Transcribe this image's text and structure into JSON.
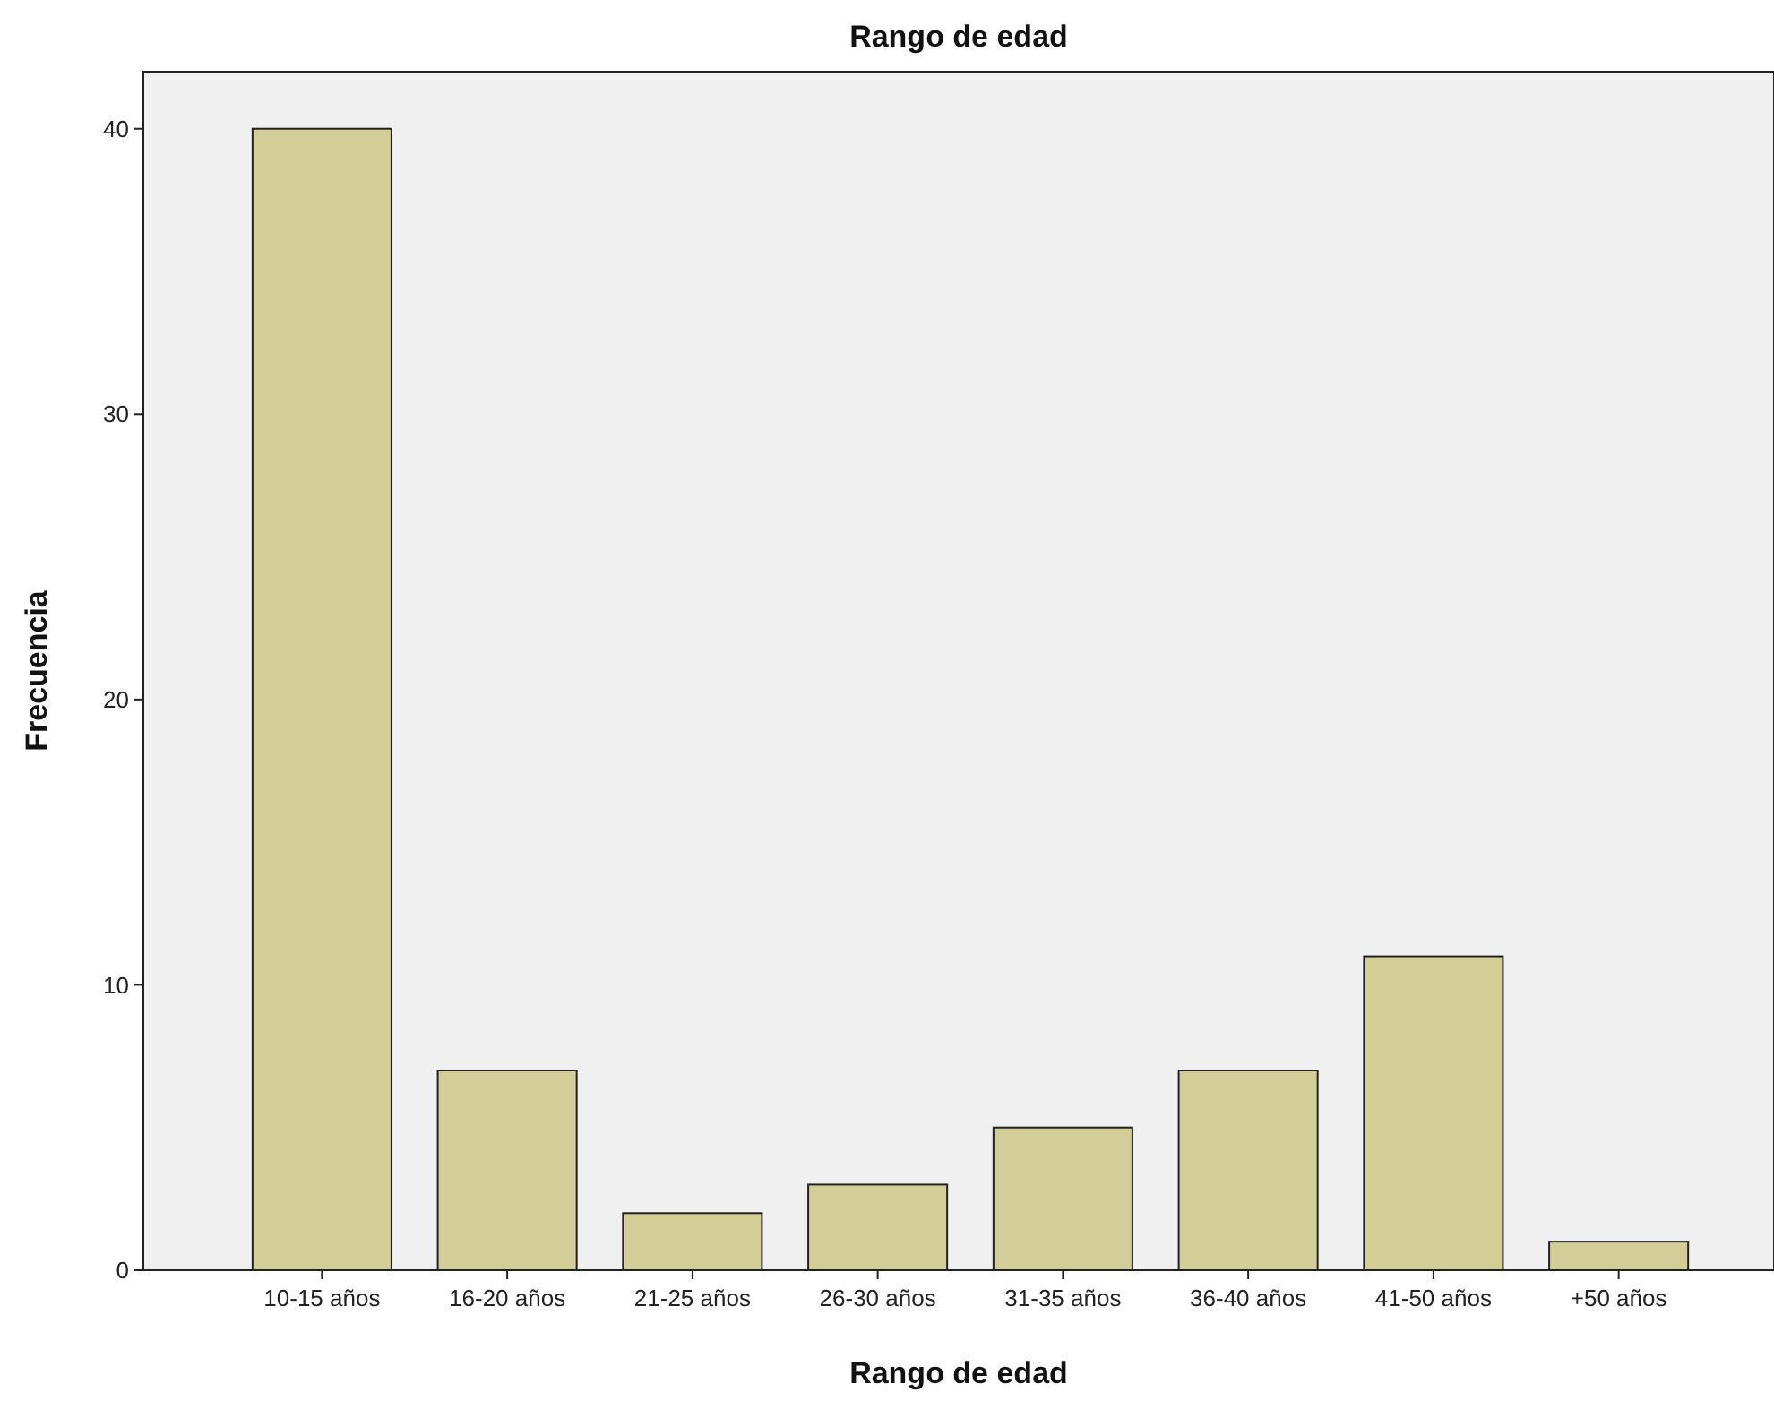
{
  "chart_data": {
    "type": "bar",
    "title": "Rango de edad",
    "xlabel": "Rango de edad",
    "ylabel": "Frecuencia",
    "categories": [
      "10-15 años",
      "16-20 años",
      "21-25 años",
      "26-30 años",
      "31-35 años",
      "36-40 años",
      "41-50 años",
      "+50 años"
    ],
    "values": [
      40,
      7,
      2,
      3,
      5,
      7,
      11,
      1
    ],
    "color": "#d3ce97",
    "ylim": [
      0,
      42
    ],
    "yticks": [
      0,
      10,
      20,
      30,
      40
    ],
    "grid": false
  }
}
